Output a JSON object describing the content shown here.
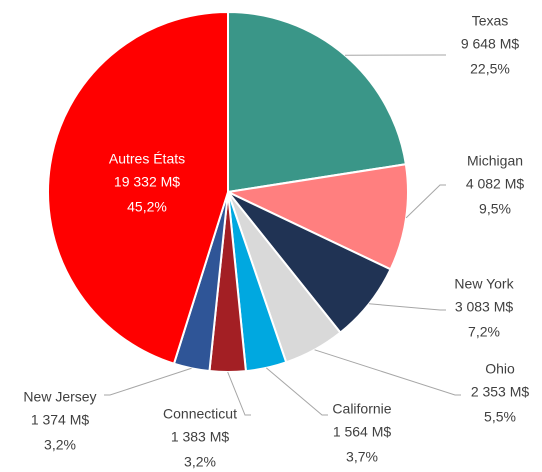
{
  "chart_data": {
    "type": "pie",
    "categories": [
      "Texas",
      "Michigan",
      "New York",
      "Ohio",
      "Californie",
      "Connecticut",
      "New Jersey",
      "Autres États"
    ],
    "values": [
      9648,
      4082,
      3083,
      2353,
      1564,
      1383,
      1374,
      19332
    ],
    "value_labels": [
      "9 648 M$",
      "4 082 M$",
      "3 083 M$",
      "2 353 M$",
      "1 564 M$",
      "1 383 M$",
      "1 374 M$",
      "19 332 M$"
    ],
    "percent_labels": [
      "22,5%",
      "9,5%",
      "7,2%",
      "5,5%",
      "3,7%",
      "3,2%",
      "3,2%",
      "45,2%"
    ],
    "colors": [
      "#3a9688",
      "#ff7f7f",
      "#203354",
      "#d9d9d9",
      "#00a8e0",
      "#a31f24",
      "#2f5597",
      "#ff0000"
    ]
  }
}
